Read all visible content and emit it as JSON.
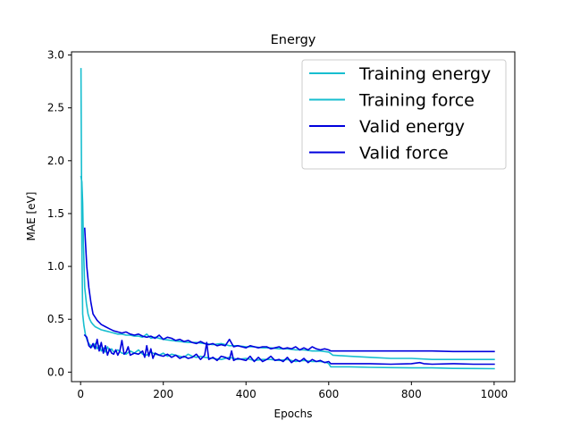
{
  "chart_data": {
    "type": "line",
    "title": "Energy",
    "xlabel": "Epochs",
    "ylabel": "MAE [eV]",
    "xlim": [
      -22,
      1050
    ],
    "ylim": [
      -0.09,
      3.03
    ],
    "xticks": [
      0,
      200,
      400,
      600,
      800,
      1000
    ],
    "yticks": [
      0.0,
      0.5,
      1.0,
      1.5,
      2.0,
      2.5,
      3.0
    ],
    "xtick_labels": [
      "0",
      "200",
      "400",
      "600",
      "800",
      "1000"
    ],
    "ytick_labels": [
      "0.0",
      "0.5",
      "1.0",
      "1.5",
      "2.0",
      "2.5",
      "3.0"
    ],
    "grid": false,
    "legend_position": "top-right",
    "series": [
      {
        "name": "Training energy",
        "color": "#17becf",
        "x": [
          1,
          3,
          5,
          8,
          12,
          16,
          20,
          25,
          30,
          35,
          40,
          45,
          50,
          55,
          60,
          65,
          70,
          75,
          80,
          90,
          100,
          110,
          120,
          130,
          140,
          150,
          160,
          170,
          180,
          190,
          200,
          210,
          220,
          230,
          240,
          250,
          260,
          270,
          280,
          290,
          300,
          320,
          340,
          360,
          380,
          400,
          420,
          440,
          460,
          480,
          500,
          520,
          540,
          560,
          580,
          595,
          600,
          605,
          620,
          650,
          700,
          750,
          800,
          850,
          900,
          950,
          1000
        ],
        "y": [
          2.87,
          1.2,
          0.55,
          0.44,
          0.35,
          0.3,
          0.27,
          0.25,
          0.24,
          0.27,
          0.22,
          0.25,
          0.2,
          0.23,
          0.19,
          0.24,
          0.2,
          0.22,
          0.19,
          0.21,
          0.18,
          0.17,
          0.2,
          0.18,
          0.21,
          0.17,
          0.16,
          0.19,
          0.17,
          0.16,
          0.18,
          0.15,
          0.17,
          0.16,
          0.15,
          0.14,
          0.17,
          0.15,
          0.14,
          0.15,
          0.14,
          0.13,
          0.12,
          0.14,
          0.12,
          0.13,
          0.11,
          0.12,
          0.12,
          0.11,
          0.12,
          0.1,
          0.11,
          0.1,
          0.1,
          0.09,
          0.08,
          0.05,
          0.05,
          0.05,
          0.045,
          0.043,
          0.04,
          0.04,
          0.035,
          0.034,
          0.033
        ]
      },
      {
        "name": "Training force",
        "color": "#17becf",
        "x": [
          1,
          3,
          5,
          7,
          10,
          14,
          18,
          22,
          26,
          30,
          35,
          40,
          50,
          60,
          70,
          80,
          90,
          100,
          110,
          120,
          130,
          140,
          150,
          160,
          170,
          180,
          200,
          220,
          240,
          260,
          280,
          300,
          320,
          340,
          360,
          380,
          400,
          420,
          440,
          460,
          480,
          500,
          520,
          540,
          560,
          580,
          600,
          610,
          650,
          700,
          750,
          800,
          850,
          900,
          950,
          1000
        ],
        "y": [
          1.85,
          1.8,
          1.6,
          1.2,
          0.8,
          0.65,
          0.55,
          0.5,
          0.47,
          0.45,
          0.43,
          0.42,
          0.4,
          0.39,
          0.38,
          0.37,
          0.36,
          0.36,
          0.35,
          0.35,
          0.34,
          0.34,
          0.33,
          0.36,
          0.32,
          0.33,
          0.31,
          0.3,
          0.29,
          0.28,
          0.28,
          0.27,
          0.26,
          0.27,
          0.25,
          0.25,
          0.24,
          0.24,
          0.23,
          0.23,
          0.22,
          0.22,
          0.21,
          0.21,
          0.2,
          0.2,
          0.19,
          0.16,
          0.15,
          0.14,
          0.13,
          0.13,
          0.12,
          0.12,
          0.12,
          0.12
        ]
      },
      {
        "name": "Valid energy",
        "color": "#0000dd",
        "x": [
          10,
          15,
          20,
          25,
          30,
          35,
          40,
          45,
          50,
          55,
          60,
          65,
          70,
          75,
          80,
          85,
          90,
          95,
          100,
          105,
          110,
          115,
          120,
          130,
          140,
          150,
          155,
          160,
          165,
          170,
          175,
          180,
          190,
          200,
          210,
          220,
          230,
          240,
          250,
          260,
          270,
          280,
          290,
          300,
          305,
          310,
          320,
          330,
          340,
          350,
          360,
          365,
          370,
          380,
          390,
          400,
          410,
          420,
          430,
          440,
          450,
          460,
          470,
          480,
          490,
          500,
          510,
          520,
          530,
          540,
          550,
          560,
          570,
          580,
          590,
          600,
          605,
          620,
          650,
          700,
          750,
          800,
          820,
          830,
          850,
          900,
          950,
          1000
        ],
        "y": [
          0.35,
          0.33,
          0.25,
          0.23,
          0.27,
          0.22,
          0.31,
          0.2,
          0.28,
          0.18,
          0.25,
          0.16,
          0.22,
          0.18,
          0.17,
          0.21,
          0.16,
          0.2,
          0.3,
          0.17,
          0.19,
          0.24,
          0.16,
          0.18,
          0.17,
          0.2,
          0.14,
          0.25,
          0.15,
          0.22,
          0.13,
          0.18,
          0.16,
          0.15,
          0.17,
          0.14,
          0.16,
          0.13,
          0.15,
          0.13,
          0.14,
          0.17,
          0.12,
          0.16,
          0.28,
          0.12,
          0.14,
          0.11,
          0.15,
          0.14,
          0.12,
          0.2,
          0.11,
          0.13,
          0.12,
          0.11,
          0.15,
          0.1,
          0.14,
          0.1,
          0.12,
          0.15,
          0.11,
          0.12,
          0.1,
          0.14,
          0.09,
          0.12,
          0.1,
          0.13,
          0.09,
          0.12,
          0.1,
          0.11,
          0.09,
          0.1,
          0.08,
          0.08,
          0.08,
          0.08,
          0.075,
          0.08,
          0.09,
          0.08,
          0.075,
          0.08,
          0.075,
          0.075
        ]
      },
      {
        "name": "Valid force",
        "color": "#0000dd",
        "x": [
          10,
          15,
          20,
          25,
          30,
          40,
          50,
          60,
          70,
          80,
          90,
          100,
          110,
          120,
          130,
          140,
          150,
          160,
          170,
          180,
          190,
          200,
          210,
          220,
          230,
          240,
          250,
          260,
          270,
          280,
          290,
          300,
          310,
          320,
          330,
          340,
          350,
          360,
          370,
          380,
          390,
          400,
          410,
          420,
          430,
          440,
          450,
          460,
          470,
          480,
          490,
          500,
          510,
          520,
          530,
          540,
          550,
          560,
          570,
          580,
          590,
          600,
          605,
          650,
          700,
          750,
          800,
          850,
          900,
          950,
          1000
        ],
        "y": [
          1.36,
          1.0,
          0.8,
          0.66,
          0.55,
          0.49,
          0.45,
          0.43,
          0.41,
          0.39,
          0.38,
          0.37,
          0.38,
          0.36,
          0.35,
          0.36,
          0.34,
          0.33,
          0.34,
          0.32,
          0.35,
          0.31,
          0.33,
          0.32,
          0.3,
          0.31,
          0.29,
          0.3,
          0.28,
          0.27,
          0.29,
          0.27,
          0.26,
          0.27,
          0.25,
          0.26,
          0.25,
          0.31,
          0.24,
          0.25,
          0.24,
          0.23,
          0.25,
          0.24,
          0.23,
          0.24,
          0.24,
          0.22,
          0.23,
          0.24,
          0.22,
          0.23,
          0.22,
          0.24,
          0.21,
          0.23,
          0.21,
          0.24,
          0.22,
          0.21,
          0.22,
          0.21,
          0.2,
          0.2,
          0.2,
          0.2,
          0.2,
          0.2,
          0.195,
          0.195,
          0.195
        ]
      }
    ]
  }
}
